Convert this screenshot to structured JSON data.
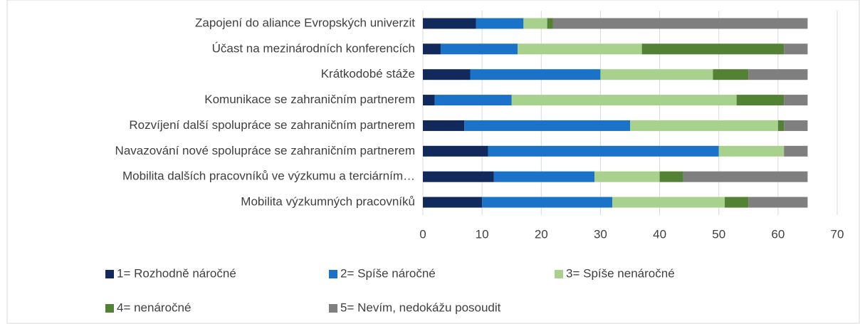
{
  "chart_data": {
    "type": "stacked-horizontal-bar",
    "categories": [
      "Zapojení do aliance Evropských univerzit",
      "Účast na mezinárodních konferencích",
      "Krátkodobé stáže",
      "Komunikace se zahraničním partnerem",
      "Rozvíjení další spolupráce se zahraničním partnerem",
      "Navazování nové spolupráce se zahraničním partnerem",
      "Mobilita dalších pracovníků ve výzkumu a terciárním…",
      "Mobilita výzkumných pracovníků"
    ],
    "series": [
      {
        "name": "1= Rozhodně náročné",
        "color": "#12295b",
        "values": [
          9,
          3,
          8,
          2,
          7,
          11,
          12,
          10
        ]
      },
      {
        "name": "2= Spíše náročné",
        "color": "#1a73c8",
        "values": [
          8,
          13,
          22,
          13,
          28,
          39,
          17,
          22
        ]
      },
      {
        "name": "3= Spíše nenáročné",
        "color": "#a9d18e",
        "values": [
          4,
          21,
          19,
          38,
          25,
          11,
          11,
          19
        ]
      },
      {
        "name": "4= nenáročné",
        "color": "#548235",
        "values": [
          1,
          24,
          6,
          8,
          1,
          0,
          4,
          4
        ]
      },
      {
        "name": "5= Nevím, nedokážu posoudit",
        "color": "#7f7f7f",
        "values": [
          43,
          4,
          10,
          4,
          4,
          4,
          21,
          10
        ]
      }
    ],
    "xlim": [
      0,
      70
    ],
    "xticks": [
      0,
      10,
      20,
      30,
      40,
      50,
      60,
      70
    ],
    "grid": true
  }
}
